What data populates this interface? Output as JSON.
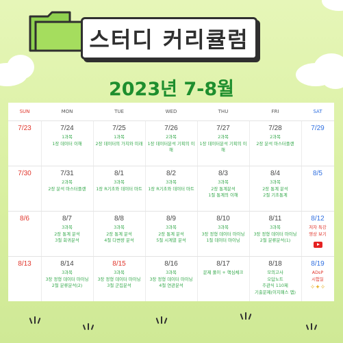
{
  "header": {
    "title": "스터디 커리큘럼",
    "subtitle": "2023년 7-8월"
  },
  "weekdays": [
    "SUN",
    "MON",
    "TUE",
    "WED",
    "THU",
    "FRI",
    "SAT"
  ],
  "weeks": [
    [
      {
        "date": "7/23",
        "lines": []
      },
      {
        "date": "7/24",
        "lines": [
          "1과목",
          "1장 데이터 이해"
        ]
      },
      {
        "date": "7/25",
        "lines": [
          "1과목",
          "2장 데이터의 가치와 미래"
        ]
      },
      {
        "date": "7/26",
        "lines": [
          "2과목",
          "1장 데이터분석 기획의 이해"
        ]
      },
      {
        "date": "7/27",
        "lines": [
          "2과목",
          "1장 데이터분석 기획의 이해"
        ]
      },
      {
        "date": "7/28",
        "lines": [
          "2과목",
          "2장 분석 마스터플랜"
        ]
      },
      {
        "date": "7/29",
        "lines": []
      }
    ],
    [
      {
        "date": "7/30",
        "lines": []
      },
      {
        "date": "7/31",
        "lines": [
          "2과목",
          "2장 분석 마스터플랜"
        ]
      },
      {
        "date": "8/1",
        "lines": [
          "3과목",
          "1장 R기초와 데이터 마트"
        ]
      },
      {
        "date": "8/2",
        "lines": [
          "3과목",
          "1장 R기초와 데이터 마트"
        ]
      },
      {
        "date": "8/3",
        "lines": [
          "3과목",
          "2장 통계분석",
          "1절 통계의 이해"
        ]
      },
      {
        "date": "8/4",
        "lines": [
          "3과목",
          "2장 통계 분석",
          "2절 기초통계"
        ]
      },
      {
        "date": "8/5",
        "lines": []
      }
    ],
    [
      {
        "date": "8/6",
        "lines": []
      },
      {
        "date": "8/7",
        "lines": [
          "3과목",
          "2장 통계 분석",
          "3절 회귀분석"
        ]
      },
      {
        "date": "8/8",
        "lines": [
          "3과목",
          "2장 통계 분석",
          "4절 다변량 분석"
        ]
      },
      {
        "date": "8/9",
        "lines": [
          "3과목",
          "2장 통계 분석",
          "5절 시계열 분석"
        ]
      },
      {
        "date": "8/10",
        "lines": [
          "3과목",
          "3장 정형 데이터 마이닝",
          "1절 데이터 마이닝"
        ]
      },
      {
        "date": "8/11",
        "lines": [
          "3과목",
          "3장 정형 데이터 마이닝",
          "2절 분류분석(1)"
        ]
      },
      {
        "date": "8/12",
        "lines": [
          "저자 특강",
          "영상 보기"
        ]
      }
    ],
    [
      {
        "date": "8/13",
        "lines": []
      },
      {
        "date": "8/14",
        "lines": [
          "3과목",
          "3장 정형 데이터 마이닝",
          "2절 분류분석(2)"
        ]
      },
      {
        "date": "8/15",
        "lines": [
          "3과목",
          "3장 정형 데이터 마이닝",
          "3절 군집분석"
        ]
      },
      {
        "date": "8/16",
        "lines": [
          "3과목",
          "3장 정형 데이터 마이닝",
          "4절 연관분석"
        ]
      },
      {
        "date": "8/17",
        "lines": [
          "문제 풀이 + 핵심체크"
        ]
      },
      {
        "date": "8/18",
        "lines": [
          "모의고사",
          "오답노트",
          "주관식 110제",
          "기출문제(이지패스 앱)"
        ]
      },
      {
        "date": "8/19",
        "lines": [
          "ADsP",
          "시험일"
        ]
      }
    ]
  ],
  "icons": {
    "youtube": "youtube-icon",
    "folder": "folder-icon",
    "sparkle": "sparkle-icon"
  },
  "colors": {
    "green_text": "#33a84a",
    "red": "#e0342a",
    "blue": "#2f6fe0",
    "title_green": "#1e8e2e"
  }
}
